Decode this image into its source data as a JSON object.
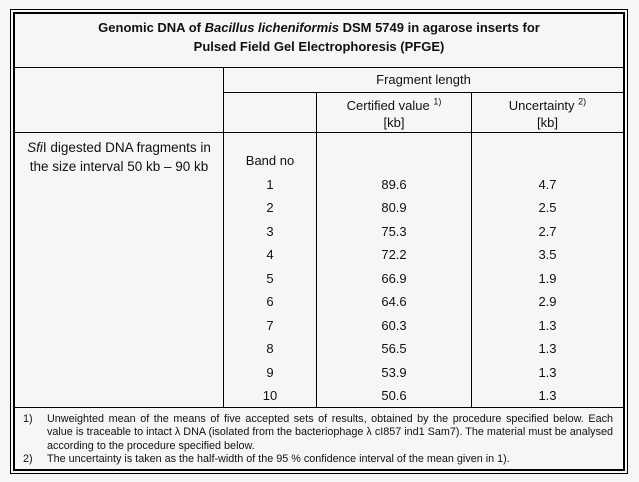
{
  "title": {
    "prefix": "Genomic DNA of ",
    "italic": "Bacillus licheniformis",
    "suffix": " DSM 5749 in agarose inserts for",
    "line2": "Pulsed Field Gel Electrophoresis (PFGE)"
  },
  "header": {
    "fragment_length": "Fragment length",
    "certified_value": "Certified value",
    "certified_sup": "1)",
    "uncertainty": "Uncertainty",
    "uncertainty_sup": "2)",
    "unit": "[kb]"
  },
  "body": {
    "label_italic": "Sfi",
    "label_rest": "I digested DNA fragments in",
    "label_line2": "the size interval 50 kb – 90 kb",
    "band_header": "Band no",
    "rows": [
      {
        "band": "1",
        "value": "89.6",
        "uncertainty": "4.7"
      },
      {
        "band": "2",
        "value": "80.9",
        "uncertainty": "2.5"
      },
      {
        "band": "3",
        "value": "75.3",
        "uncertainty": "2.7"
      },
      {
        "band": "4",
        "value": "72.2",
        "uncertainty": "3.5"
      },
      {
        "band": "5",
        "value": "66.9",
        "uncertainty": "1.9"
      },
      {
        "band": "6",
        "value": "64.6",
        "uncertainty": "2.9"
      },
      {
        "band": "7",
        "value": "60.3",
        "uncertainty": "1.3"
      },
      {
        "band": "8",
        "value": "56.5",
        "uncertainty": "1.3"
      },
      {
        "band": "9",
        "value": "53.9",
        "uncertainty": "1.3"
      },
      {
        "band": "10",
        "value": "50.6",
        "uncertainty": "1.3"
      }
    ]
  },
  "footnotes": [
    {
      "marker": "1)",
      "text": "Unweighted mean of the means of five accepted sets of results, obtained by the procedure specified below. Each value is traceable to intact λ DNA (isolated from the bacteriophage λ cI857 ind1 Sam7). The material must be analysed according to the procedure specified below."
    },
    {
      "marker": "2)",
      "text": "The uncertainty is taken as the half-width of the 95 % confidence interval of the mean given in 1)."
    }
  ],
  "colors": {
    "background": "#f6f6f6",
    "border": "#000000",
    "text": "#111111"
  }
}
